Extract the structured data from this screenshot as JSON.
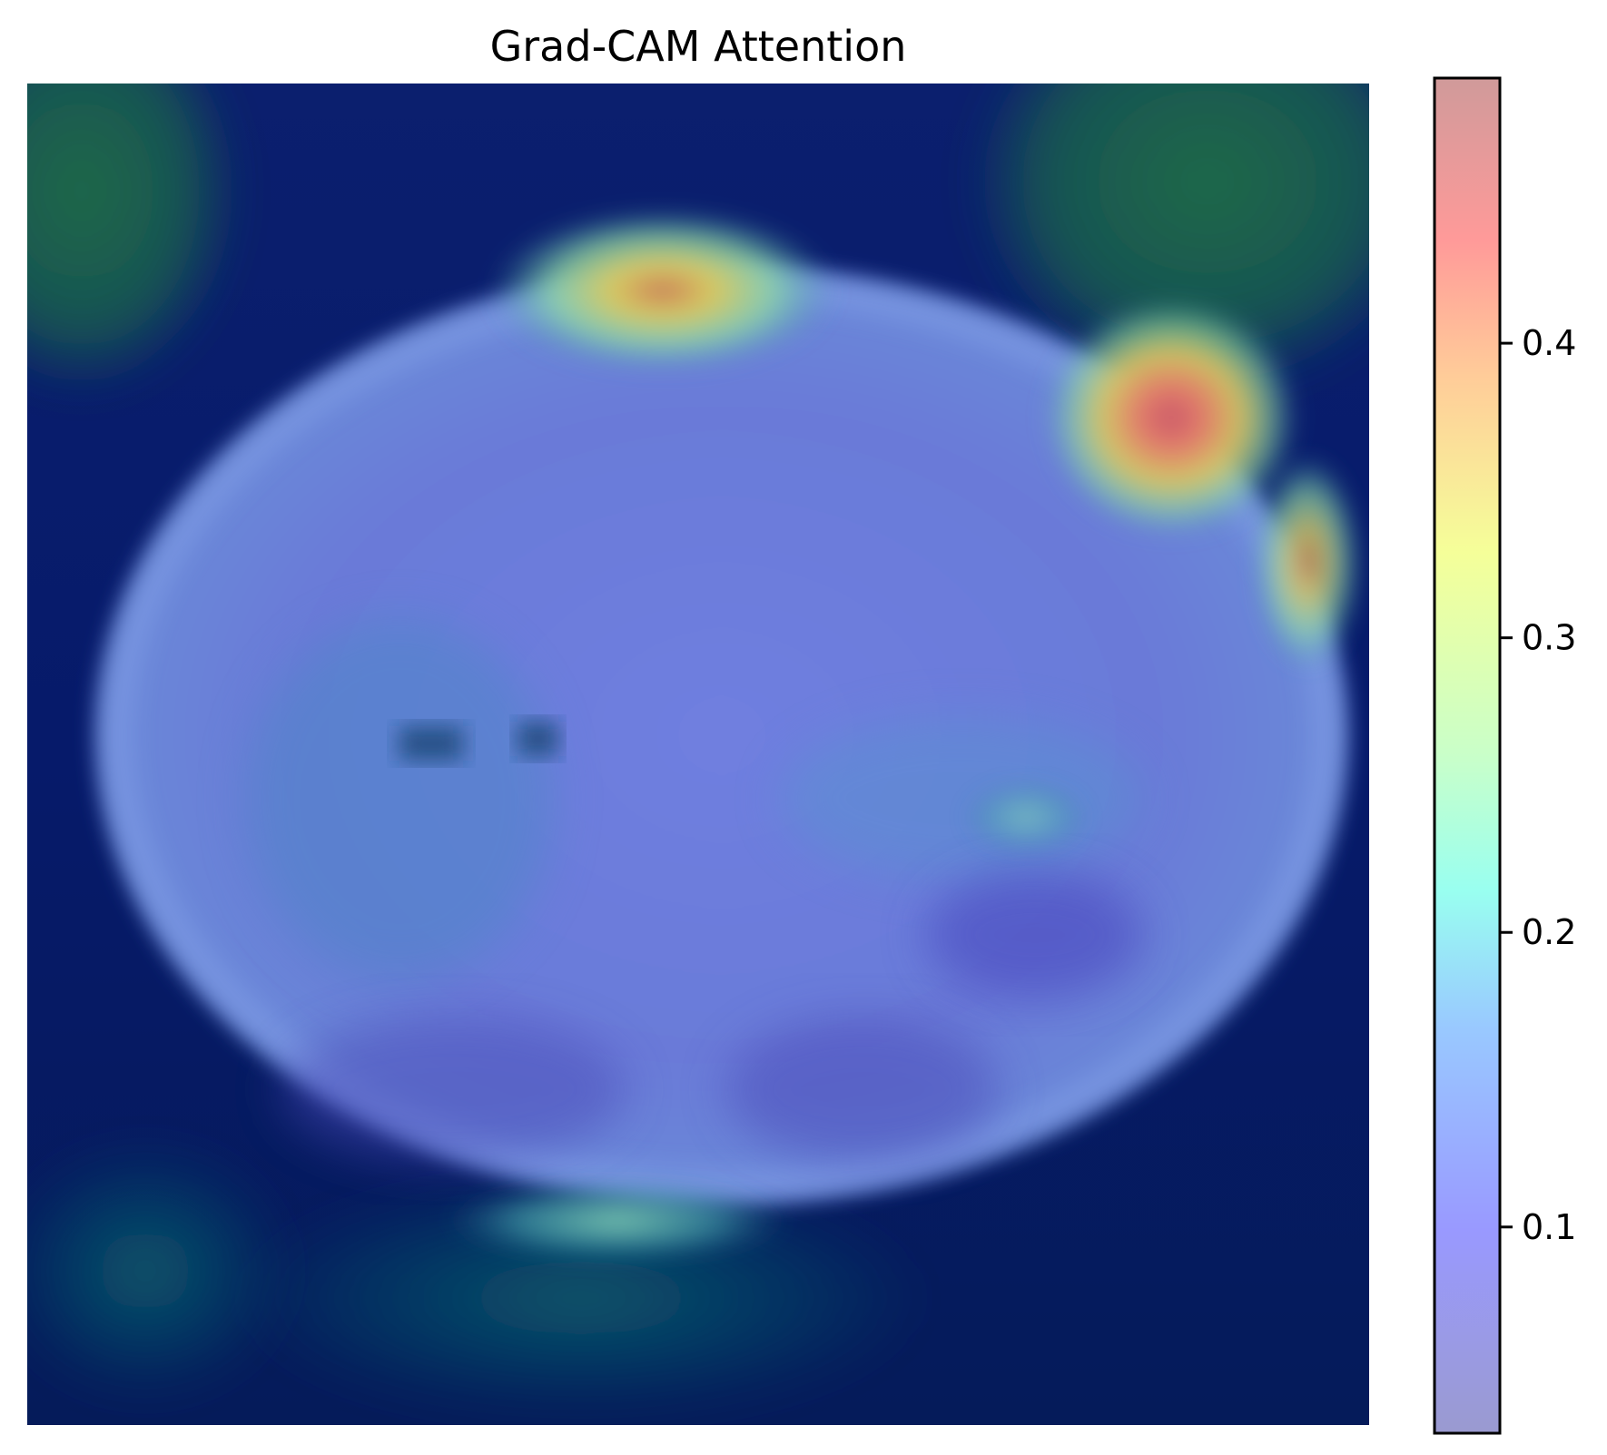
{
  "chart_data": {
    "type": "heatmap",
    "title": "Grad-CAM Attention",
    "xlabel": "",
    "ylabel": "",
    "axes_visible": false,
    "colormap": "jet",
    "overlay_alpha": 0.4,
    "colorbar": {
      "position": "right",
      "range": [
        0.03,
        0.49
      ],
      "ticks": [
        0.1,
        0.2,
        0.3,
        0.4
      ],
      "tick_labels": [
        "0.1",
        "0.2",
        "0.3",
        "0.4"
      ]
    },
    "hotspots": [
      {
        "region": "top-right edge",
        "value": 0.47
      },
      {
        "region": "top-center",
        "value": 0.36
      },
      {
        "region": "right edge",
        "value": 0.3
      },
      {
        "region": "bottom-center",
        "value": 0.24
      }
    ]
  }
}
